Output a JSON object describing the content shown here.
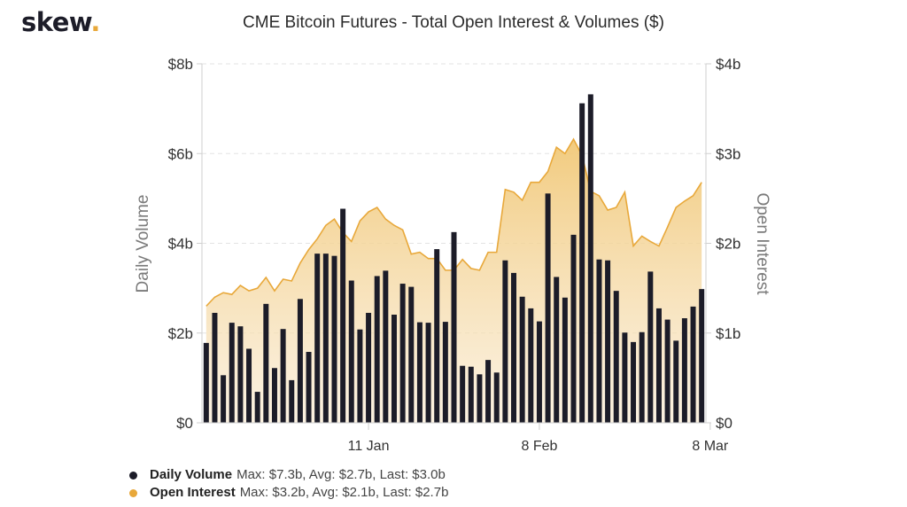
{
  "brand": {
    "name": "skew",
    "dot": "."
  },
  "chart_data": {
    "type": "bar",
    "title": "CME Bitcoin Futures - Total Open Interest & Volumes ($)",
    "ylabel_left": "Daily Volume",
    "ylabel_right": "Open Interest",
    "y_left": {
      "lim": [
        0,
        8
      ],
      "ticks": [
        0,
        2,
        4,
        6,
        8
      ],
      "tick_labels": [
        "$0",
        "$2b",
        "$4b",
        "$6b",
        "$8b"
      ]
    },
    "y_right": {
      "lim": [
        0,
        4
      ],
      "ticks": [
        0,
        1,
        2,
        3,
        4
      ],
      "tick_labels": [
        "$0",
        "$1b",
        "$2b",
        "$3b",
        "$4b"
      ]
    },
    "x_tick_labels": [
      {
        "label": "11 Jan",
        "index": 19
      },
      {
        "label": "8 Feb",
        "index": 39
      },
      {
        "label": "8 Mar",
        "index": 59
      }
    ],
    "grid": true,
    "series": [
      {
        "name": "Daily Volume",
        "axis": "left",
        "color": "#1c1c28",
        "unit": "$b",
        "values": [
          1.78,
          2.45,
          1.06,
          2.23,
          2.15,
          1.65,
          0.69,
          2.65,
          1.22,
          2.09,
          0.95,
          2.76,
          1.58,
          3.77,
          3.77,
          3.72,
          4.77,
          3.17,
          2.08,
          2.45,
          3.27,
          3.39,
          2.41,
          3.1,
          3.03,
          2.24,
          2.23,
          3.87,
          2.25,
          4.25,
          1.27,
          1.25,
          1.08,
          1.4,
          1.12,
          3.62,
          3.34,
          2.81,
          2.55,
          2.26,
          5.11,
          3.25,
          2.79,
          4.19,
          7.12,
          7.32,
          3.64,
          3.62,
          2.94,
          2.01,
          1.8,
          2.02,
          3.37,
          2.55,
          2.3,
          1.83,
          2.33,
          2.59,
          2.98
        ]
      },
      {
        "name": "Open Interest",
        "axis": "right",
        "color": "#e8a83a",
        "unit": "$b",
        "values": [
          1.3,
          1.4,
          1.45,
          1.43,
          1.53,
          1.47,
          1.5,
          1.62,
          1.47,
          1.6,
          1.58,
          1.78,
          1.93,
          2.05,
          2.2,
          2.27,
          2.12,
          2.02,
          2.25,
          2.35,
          2.4,
          2.27,
          2.2,
          2.15,
          1.88,
          1.9,
          1.83,
          1.83,
          1.7,
          1.7,
          1.82,
          1.72,
          1.7,
          1.9,
          1.9,
          2.6,
          2.57,
          2.48,
          2.68,
          2.68,
          2.8,
          3.07,
          3.0,
          3.16,
          2.98,
          2.58,
          2.53,
          2.37,
          2.4,
          2.57,
          1.97,
          2.08,
          2.02,
          1.97,
          2.18,
          2.4,
          2.47,
          2.53,
          2.68
        ]
      }
    ]
  },
  "legend": [
    {
      "name": "Daily Volume",
      "stats": "Max: $7.3b, Avg: $2.7b, Last: $3.0b",
      "color": "#1c1c28"
    },
    {
      "name": "Open Interest",
      "stats": "Max: $3.2b, Avg: $2.1b, Last: $2.7b",
      "color": "#e8a83a"
    }
  ]
}
